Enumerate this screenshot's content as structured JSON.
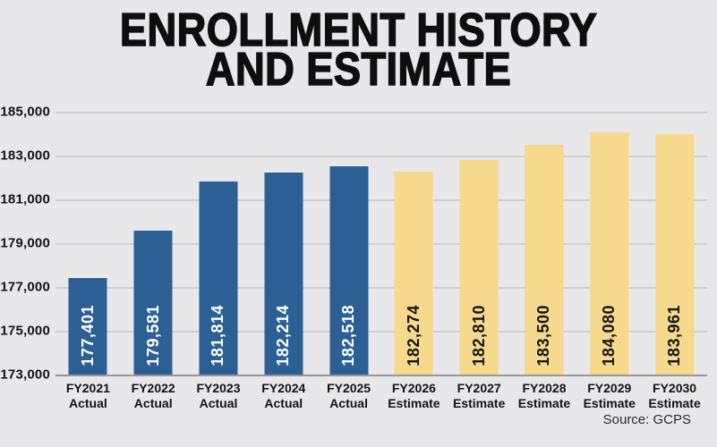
{
  "title": {
    "line1": "ENROLLMENT HISTORY",
    "line2": "AND ESTIMATE"
  },
  "source": "Source: GCPS",
  "colors": {
    "background": "#e8e7e9",
    "actual_bar": "#2c6095",
    "estimate_bar": "#f6d98c",
    "actual_value_text": "#ffffff",
    "estimate_value_text": "#141414",
    "gridline": "#cfced2",
    "baseline": "#97969a"
  },
  "chart_data": {
    "type": "bar",
    "title": "ENROLLMENT HISTORY AND ESTIMATE",
    "xlabel": "",
    "ylabel": "",
    "ylim": [
      173000,
      185000
    ],
    "y_tick_interval": 2000,
    "grid": "horizontal",
    "legend_position": "none",
    "y_tick_labels": [
      "185,000",
      "183,000",
      "181,000",
      "179,000",
      "177,000",
      "175,000",
      "173,000"
    ],
    "bars": [
      {
        "category": "FY2021",
        "series": "Actual",
        "value": 177401,
        "value_label": "177,401"
      },
      {
        "category": "FY2022",
        "series": "Actual",
        "value": 179581,
        "value_label": "179,581"
      },
      {
        "category": "FY2023",
        "series": "Actual",
        "value": 181814,
        "value_label": "181,814"
      },
      {
        "category": "FY2024",
        "series": "Actual",
        "value": 182214,
        "value_label": "182,214"
      },
      {
        "category": "FY2025",
        "series": "Actual",
        "value": 182518,
        "value_label": "182,518"
      },
      {
        "category": "FY2026",
        "series": "Estimate",
        "value": 182274,
        "value_label": "182,274"
      },
      {
        "category": "FY2027",
        "series": "Estimate",
        "value": 182810,
        "value_label": "182,810"
      },
      {
        "category": "FY2028",
        "series": "Estimate",
        "value": 183500,
        "value_label": "183,500"
      },
      {
        "category": "FY2029",
        "series": "Estimate",
        "value": 184080,
        "value_label": "184,080"
      },
      {
        "category": "FY2030",
        "series": "Estimate",
        "value": 183961,
        "value_label": "183,961"
      }
    ]
  }
}
